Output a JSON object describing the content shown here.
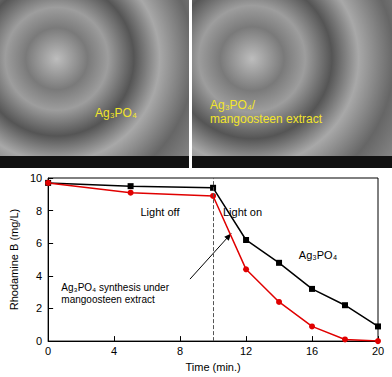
{
  "panels": [
    {
      "label": "Ag₃PO₄"
    },
    {
      "label": "Ag₃PO₄/\nmangoosteen extract"
    }
  ],
  "chart_data": {
    "type": "line",
    "x_label": "Time (min.)",
    "y_label": "Rhodamine B (mg/L)",
    "xlim": [
      0,
      20
    ],
    "xticks": [
      0,
      4,
      8,
      12,
      16,
      20
    ],
    "ylim": [
      0,
      10
    ],
    "yticks": [
      0,
      2,
      4,
      6,
      8,
      10
    ],
    "grid": false,
    "vline_x": 10,
    "annotations": [
      "Light off",
      "Light on"
    ],
    "series": [
      {
        "name": "Ag₃PO₄",
        "color": "#000000",
        "marker": "square",
        "line_style": "solid",
        "x": [
          0,
          5,
          10,
          12,
          14,
          16,
          18,
          20
        ],
        "values": [
          9.7,
          9.5,
          9.4,
          6.2,
          4.8,
          3.2,
          2.2,
          0.9
        ]
      },
      {
        "name": "Ag₃PO₄ synthesis under\nmangoosteen extract",
        "color": "#e00000",
        "marker": "circle",
        "line_style": "solid",
        "x": [
          0,
          5,
          10,
          12,
          14,
          16,
          18,
          20
        ],
        "values": [
          9.7,
          9.1,
          8.9,
          4.4,
          2.4,
          0.9,
          0.1,
          0
        ]
      }
    ]
  }
}
